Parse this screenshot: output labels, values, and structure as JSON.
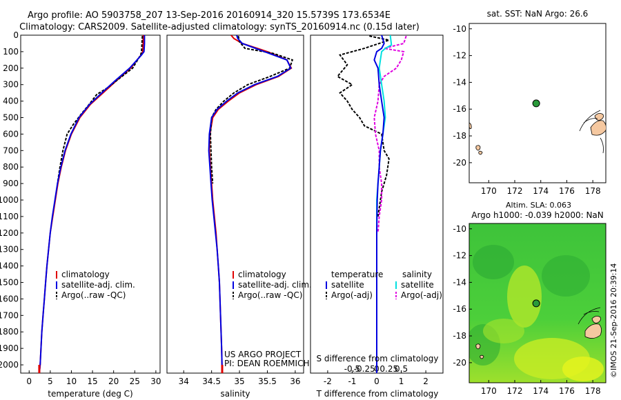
{
  "header": {
    "title_line1": "Argo profile: AO 5903758_207 13-Sep-2016 20160914_320 15.5739S 173.6534E",
    "title_line2": "Climatology: CARS2009. Satellite-adjusted climatology: synTS_20160914.nc (0.15d later)"
  },
  "project": {
    "line1": "US ARGO PROJECT",
    "line2": "PI: DEAN ROEMMICH"
  },
  "colors": {
    "climatology": "#e00000",
    "satellite": "#0000e0",
    "argo": "#000000",
    "satellite_salinity": "#00e0e0",
    "argo_salinity": "#e000e0",
    "land": "#f5c8a0",
    "float_marker": "#2a9a3a"
  },
  "chart_data": [
    {
      "id": "temperature",
      "type": "line",
      "xlabel": "temperature (deg C)",
      "ylabel": "",
      "xlim": [
        -2,
        31
      ],
      "ylim": [
        2050,
        0
      ],
      "xticks": [
        0,
        5,
        10,
        15,
        20,
        25,
        30
      ],
      "yticks": [
        0,
        100,
        200,
        300,
        400,
        500,
        600,
        700,
        800,
        900,
        1000,
        1100,
        1200,
        1300,
        1400,
        1500,
        1600,
        1700,
        1800,
        1900,
        2000
      ],
      "legend": [
        "climatology",
        "satellite-adj. clim.",
        "Argo(..raw -QC)"
      ],
      "series": [
        {
          "name": "climatology",
          "style": "solid",
          "x": [
            27.0,
            27.0,
            26.9,
            26.5,
            24.0,
            20.5,
            17.5,
            14.5,
            12.0,
            10.0,
            8.6,
            7.6,
            6.8,
            6.2,
            5.6,
            5.0,
            4.6,
            4.2,
            3.9,
            3.6,
            3.3,
            3.0,
            2.8,
            2.6,
            2.5,
            2.4
          ],
          "y": [
            0,
            50,
            100,
            120,
            200,
            280,
            350,
            420,
            500,
            600,
            700,
            800,
            900,
            1000,
            1100,
            1200,
            1300,
            1400,
            1500,
            1600,
            1700,
            1800,
            1900,
            2000,
            2030,
            2050
          ]
        },
        {
          "name": "satellite-adj. clim.",
          "style": "solid",
          "x": [
            27.3,
            27.3,
            27.2,
            26.6,
            23.8,
            20.2,
            17.2,
            14.3,
            11.8,
            9.9,
            8.5,
            7.5,
            6.7,
            6.1,
            5.5,
            5.0,
            4.6,
            4.2,
            3.9,
            3.6,
            3.3,
            3.0,
            2.8,
            2.6,
            2.5,
            2.4
          ],
          "y": [
            0,
            50,
            100,
            120,
            200,
            280,
            350,
            420,
            500,
            600,
            700,
            800,
            900,
            1000,
            1100,
            1200,
            1300,
            1400,
            1500,
            1600,
            1700,
            1800,
            1900,
            2000,
            2030,
            2050
          ]
        },
        {
          "name": "Argo(..raw -QC)",
          "style": "dashed",
          "x": [
            26.8,
            26.7,
            26.6,
            26.4,
            24.5,
            21.5,
            18.5,
            16.0,
            14.2,
            12.3,
            10.5,
            9.0,
            8.0,
            7.3,
            6.7
          ],
          "y": [
            5,
            50,
            100,
            120,
            200,
            260,
            320,
            360,
            420,
            480,
            540,
            600,
            700,
            800,
            900
          ]
        }
      ]
    },
    {
      "id": "salinity",
      "type": "line",
      "xlabel": "salinity",
      "ylabel": "",
      "xlim": [
        33.7,
        36.15
      ],
      "ylim": [
        2050,
        0
      ],
      "xticks": [
        34,
        34.5,
        35,
        35.5,
        36
      ],
      "legend": [
        "climatology",
        "satellite-adj. clim.",
        "Argo(..raw -QC)"
      ],
      "series": [
        {
          "name": "climatology",
          "style": "solid",
          "x": [
            34.85,
            34.9,
            35.05,
            35.5,
            35.85,
            35.93,
            35.7,
            35.3,
            35.0,
            34.8,
            34.62,
            34.52,
            34.47,
            34.46,
            34.48,
            34.5,
            34.52,
            34.55,
            34.58,
            34.6,
            34.62,
            34.64,
            34.65,
            34.66,
            34.67,
            34.68,
            34.69
          ],
          "y": [
            0,
            20,
            50,
            100,
            150,
            200,
            250,
            300,
            350,
            400,
            450,
            500,
            600,
            700,
            800,
            900,
            1000,
            1100,
            1200,
            1300,
            1400,
            1500,
            1600,
            1700,
            1800,
            1900,
            2050
          ]
        },
        {
          "name": "satellite-adj. clim.",
          "style": "solid",
          "x": [
            34.95,
            34.97,
            35.05,
            35.45,
            35.85,
            35.92,
            35.68,
            35.27,
            34.97,
            34.77,
            34.6,
            34.5,
            34.46,
            34.45,
            34.47,
            34.49,
            34.51,
            34.54,
            34.57,
            34.6,
            34.62,
            34.64,
            34.65,
            34.66,
            34.67,
            34.68,
            34.69
          ],
          "y": [
            0,
            20,
            50,
            100,
            150,
            200,
            250,
            300,
            350,
            400,
            450,
            500,
            600,
            700,
            800,
            900,
            1000,
            1100,
            1200,
            1300,
            1400,
            1500,
            1600,
            1700,
            1800,
            1900,
            2050
          ]
        },
        {
          "name": "Argo(..raw -QC)",
          "style": "dashed",
          "x": [
            34.98,
            35.0,
            35.1,
            35.6,
            35.95,
            35.9,
            35.55,
            35.15,
            34.9,
            34.72,
            34.58,
            34.5,
            34.48,
            34.49,
            34.5,
            34.52
          ],
          "y": [
            5,
            40,
            80,
            110,
            150,
            200,
            250,
            300,
            350,
            400,
            450,
            500,
            600,
            700,
            800,
            900
          ]
        }
      ]
    },
    {
      "id": "differences",
      "type": "line",
      "xlabel": "T difference from climatology",
      "xlabel_top": "S difference from climatology",
      "ylabel": "",
      "xlim": [
        -2.7,
        2.7
      ],
      "ylim": [
        2050,
        0
      ],
      "xticks_T": [
        -2,
        -1,
        0,
        1,
        2
      ],
      "xticks_S": [
        -0.5,
        -0.25,
        0,
        0.25,
        0.5
      ],
      "legend_temperature": {
        "title": "temperature",
        "items": [
          "satellite",
          "Argo(-adj)"
        ]
      },
      "legend_salinity": {
        "title": "salinity",
        "items": [
          "satellite",
          "Argo(-adj)"
        ]
      },
      "series": [
        {
          "name": "T satellite",
          "style": "solid",
          "x": [
            0.2,
            0.3,
            0.2,
            0.0,
            -0.1,
            0.05,
            0.1,
            0.2,
            0.3,
            0.25,
            0.15,
            0.1,
            0.05,
            0.02,
            0.0,
            0.0,
            0.0,
            0.0,
            0.0,
            0.0,
            0.0
          ],
          "y": [
            0,
            50,
            80,
            100,
            150,
            200,
            300,
            400,
            500,
            600,
            700,
            800,
            900,
            1000,
            1200,
            1400,
            1600,
            1800,
            2000,
            2050,
            2050
          ]
        },
        {
          "name": "T Argo(-adj)",
          "style": "dashed",
          "x": [
            -0.3,
            0.5,
            -0.5,
            -1.5,
            -1.2,
            -1.6,
            -1.0,
            -1.5,
            -1.2,
            -1.0,
            -0.7,
            -0.5,
            0.2,
            0.3,
            0.5,
            0.4,
            0.2,
            0.05
          ],
          "y": [
            5,
            30,
            80,
            120,
            180,
            250,
            300,
            350,
            400,
            450,
            500,
            550,
            600,
            700,
            750,
            850,
            950,
            1100
          ]
        },
        {
          "name": "S satellite",
          "style": "solid",
          "x": [
            0.55,
            0.6,
            0.35,
            0.2,
            0.15,
            0.1,
            0.2,
            0.3,
            0.35,
            0.25,
            0.15,
            0.1,
            0.05,
            0.0,
            0.0,
            0.0,
            0.0,
            0.0,
            0.0
          ],
          "y": [
            0,
            60,
            80,
            100,
            150,
            200,
            300,
            400,
            500,
            600,
            700,
            800,
            900,
            1000,
            1200,
            1400,
            1600,
            1800,
            2050
          ]
        },
        {
          "name": "S Argo(-adj)",
          "style": "dashed",
          "x": [
            1.2,
            1.1,
            0.3,
            1.1,
            1.0,
            0.8,
            0.3,
            0.1,
            0.05,
            -0.1,
            -0.05,
            0.1,
            0.1,
            0.2,
            0.2,
            0.1,
            0.05
          ],
          "y": [
            5,
            50,
            80,
            100,
            150,
            200,
            250,
            300,
            400,
            500,
            600,
            700,
            800,
            900,
            1000,
            1100,
            1200
          ]
        }
      ]
    },
    {
      "id": "sst_map",
      "type": "scatter",
      "title": "sat. SST: NaN Argo: 26.6",
      "xlim": [
        168.5,
        179
      ],
      "ylim": [
        -21.5,
        -9.6
      ],
      "xticks": [
        170,
        172,
        174,
        176,
        178
      ],
      "yticks": [
        -10,
        -12,
        -14,
        -16,
        -18,
        -20
      ],
      "points": [
        {
          "x": 173.65,
          "y": -15.57
        }
      ]
    },
    {
      "id": "sla_map",
      "type": "heatmap",
      "title_line1": "Altim. SLA: 0.063",
      "title_line2": "Argo h1000: -0.039 h2000: NaN",
      "xlim": [
        168.5,
        179
      ],
      "ylim": [
        -21.5,
        -9.6
      ],
      "xticks": [
        170,
        172,
        174,
        176,
        178
      ],
      "yticks": [
        -10,
        -12,
        -14,
        -16,
        -18,
        -20
      ],
      "points": [
        {
          "x": 173.65,
          "y": -15.57
        }
      ]
    }
  ],
  "credit": "©IMOS 21-Sep-2016 20:39:14"
}
